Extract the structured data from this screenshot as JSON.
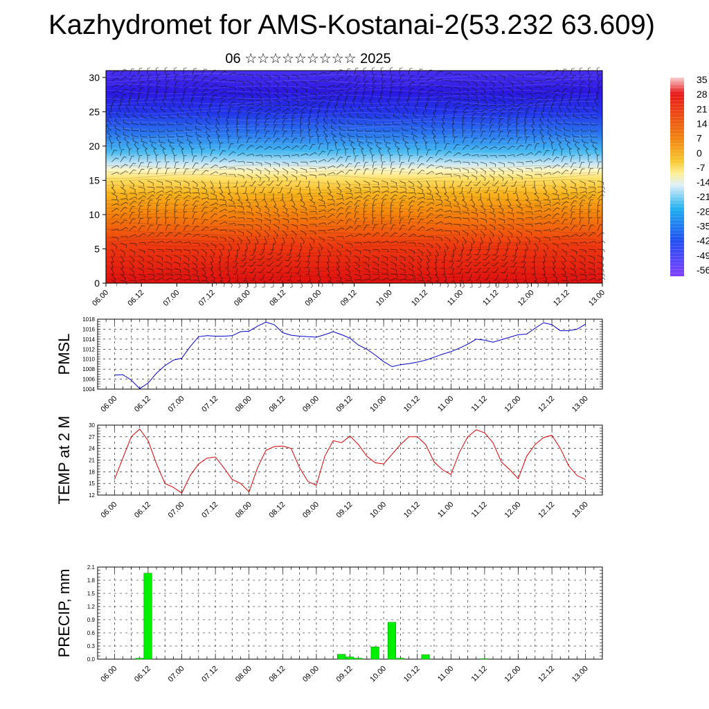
{
  "header": {
    "title": "Kazhydromet for AMS-Kostanai-2(53.232 63.609)",
    "subtitle": "06 ☆☆☆☆☆☆☆☆☆ 2025"
  },
  "chart_data": [
    {
      "type": "heatmap",
      "title": "",
      "ylim": [
        0,
        31
      ],
      "y_ticks": [
        "0",
        "5",
        "10",
        "15",
        "20",
        "25",
        "30"
      ],
      "x_ticks": [
        "06.00",
        "06.12",
        "07.00",
        "07.12",
        "08.00",
        "08.12",
        "09.00",
        "09.12",
        "10.00",
        "10.12",
        "11.00",
        "11.12",
        "12.00",
        "12.12",
        "13.00"
      ],
      "colorbar_labels": [
        "35",
        "28",
        "21",
        "14",
        "7",
        "0",
        "-7",
        "-14",
        "-21",
        "-28",
        "-35",
        "-42",
        "-49",
        "-56"
      ],
      "colorbar_colors": [
        "#f5c6c6",
        "#e01414",
        "#f0b020",
        "#ffe88a",
        "#d8ecf4",
        "#20b0f0",
        "#2040f0",
        "#8040ff"
      ],
      "overlay": "wind barbs"
    },
    {
      "type": "line",
      "ylabel": "PMSL",
      "ylim": [
        1004,
        1018
      ],
      "y_ticks": [
        "1004",
        "1006",
        "1008",
        "1010",
        "1012",
        "1014",
        "1016",
        "1018"
      ],
      "x_ticks": [
        "06.00",
        "06.12",
        "07.00",
        "07.12",
        "08.00",
        "08.12",
        "09.00",
        "09.12",
        "10.00",
        "10.12",
        "11.00",
        "11.12",
        "12.00",
        "12.12",
        "13.00"
      ],
      "color": "#0000cc",
      "x": [
        0,
        3,
        6,
        9,
        12,
        15,
        18,
        21,
        24,
        27,
        30,
        33,
        36,
        39,
        42,
        45,
        48,
        51,
        54,
        57,
        60,
        63,
        66,
        69,
        72,
        75,
        78,
        81,
        84,
        87,
        90,
        93,
        96,
        99,
        102,
        105,
        108,
        111,
        114,
        117,
        120,
        123,
        126,
        129,
        132,
        135,
        138,
        141,
        144,
        147,
        150,
        153,
        156,
        159,
        162,
        165,
        168
      ],
      "values": [
        1006.8,
        1006.9,
        1005.8,
        1004.1,
        1005.2,
        1007.2,
        1008.7,
        1009.8,
        1010.2,
        1012.5,
        1014.5,
        1014.7,
        1014.6,
        1014.6,
        1014.7,
        1015.5,
        1015.6,
        1016.6,
        1017.4,
        1016.9,
        1015.3,
        1014.8,
        1014.6,
        1014.5,
        1014.4,
        1014.9,
        1015.5,
        1014.9,
        1014.2,
        1012.8,
        1012.0,
        1010.8,
        1009.5,
        1008.5,
        1008.9,
        1009.1,
        1009.4,
        1009.8,
        1010.4,
        1011.0,
        1011.5,
        1012.2,
        1013.0,
        1014.0,
        1013.8,
        1013.4,
        1013.9,
        1014.4,
        1014.9,
        1015.0,
        1016.2,
        1017.3,
        1016.9,
        1015.7,
        1015.7,
        1016.0,
        1017.0
      ]
    },
    {
      "type": "line",
      "ylabel": "TEMP at 2 M",
      "ylim": [
        12,
        30
      ],
      "y_ticks": [
        "12",
        "15",
        "18",
        "21",
        "24",
        "27",
        "30"
      ],
      "x_ticks": [
        "06.00",
        "06.12",
        "07.00",
        "07.12",
        "08.00",
        "08.12",
        "09.00",
        "09.12",
        "10.00",
        "10.12",
        "11.00",
        "11.12",
        "12.00",
        "12.12",
        "13.00"
      ],
      "color": "#dd0000",
      "x": [
        0,
        3,
        6,
        9,
        12,
        15,
        18,
        21,
        24,
        27,
        30,
        33,
        36,
        39,
        42,
        45,
        48,
        51,
        54,
        57,
        60,
        63,
        66,
        69,
        72,
        75,
        78,
        81,
        84,
        87,
        90,
        93,
        96,
        99,
        102,
        105,
        108,
        111,
        114,
        117,
        120,
        123,
        126,
        129,
        132,
        135,
        138,
        141,
        144,
        147,
        150,
        153,
        156,
        159,
        162,
        165,
        168
      ],
      "values": [
        16.0,
        21.5,
        27.0,
        29.0,
        26.0,
        20.0,
        15.0,
        14.0,
        12.5,
        17.0,
        20.0,
        21.5,
        21.8,
        19.0,
        16.0,
        15.0,
        12.8,
        19.0,
        23.5,
        24.5,
        24.6,
        24.0,
        19.0,
        15.5,
        14.5,
        22.0,
        26.0,
        25.5,
        27.2,
        25.0,
        22.0,
        20.3,
        20.0,
        22.5,
        25.0,
        27.0,
        27.0,
        25.0,
        20.5,
        18.5,
        17.3,
        23.0,
        27.0,
        28.8,
        28.0,
        25.5,
        20.5,
        18.5,
        16.2,
        22.0,
        25.0,
        26.8,
        27.4,
        24.0,
        19.5,
        17.0,
        16.0
      ]
    },
    {
      "type": "bar",
      "ylabel": "PRECIP, mm",
      "ylim": [
        0,
        2.1
      ],
      "y_ticks": [
        "0.0",
        "0.3",
        "0.6",
        "0.9",
        "1.2",
        "1.5",
        "1.8",
        "2.1"
      ],
      "x_ticks": [
        "06.00",
        "06.12",
        "07.00",
        "07.12",
        "08.00",
        "08.12",
        "09.00",
        "09.12",
        "10.00",
        "10.12",
        "11.00",
        "11.12",
        "12.00",
        "12.12",
        "13.00"
      ],
      "color": "#00ee00",
      "x": [
        9,
        12,
        81,
        84,
        87,
        93,
        99,
        102,
        111,
        132
      ],
      "values": [
        0.02,
        1.96,
        0.11,
        0.05,
        0.02,
        0.28,
        0.84,
        0.02,
        0.1,
        0.01
      ]
    }
  ]
}
